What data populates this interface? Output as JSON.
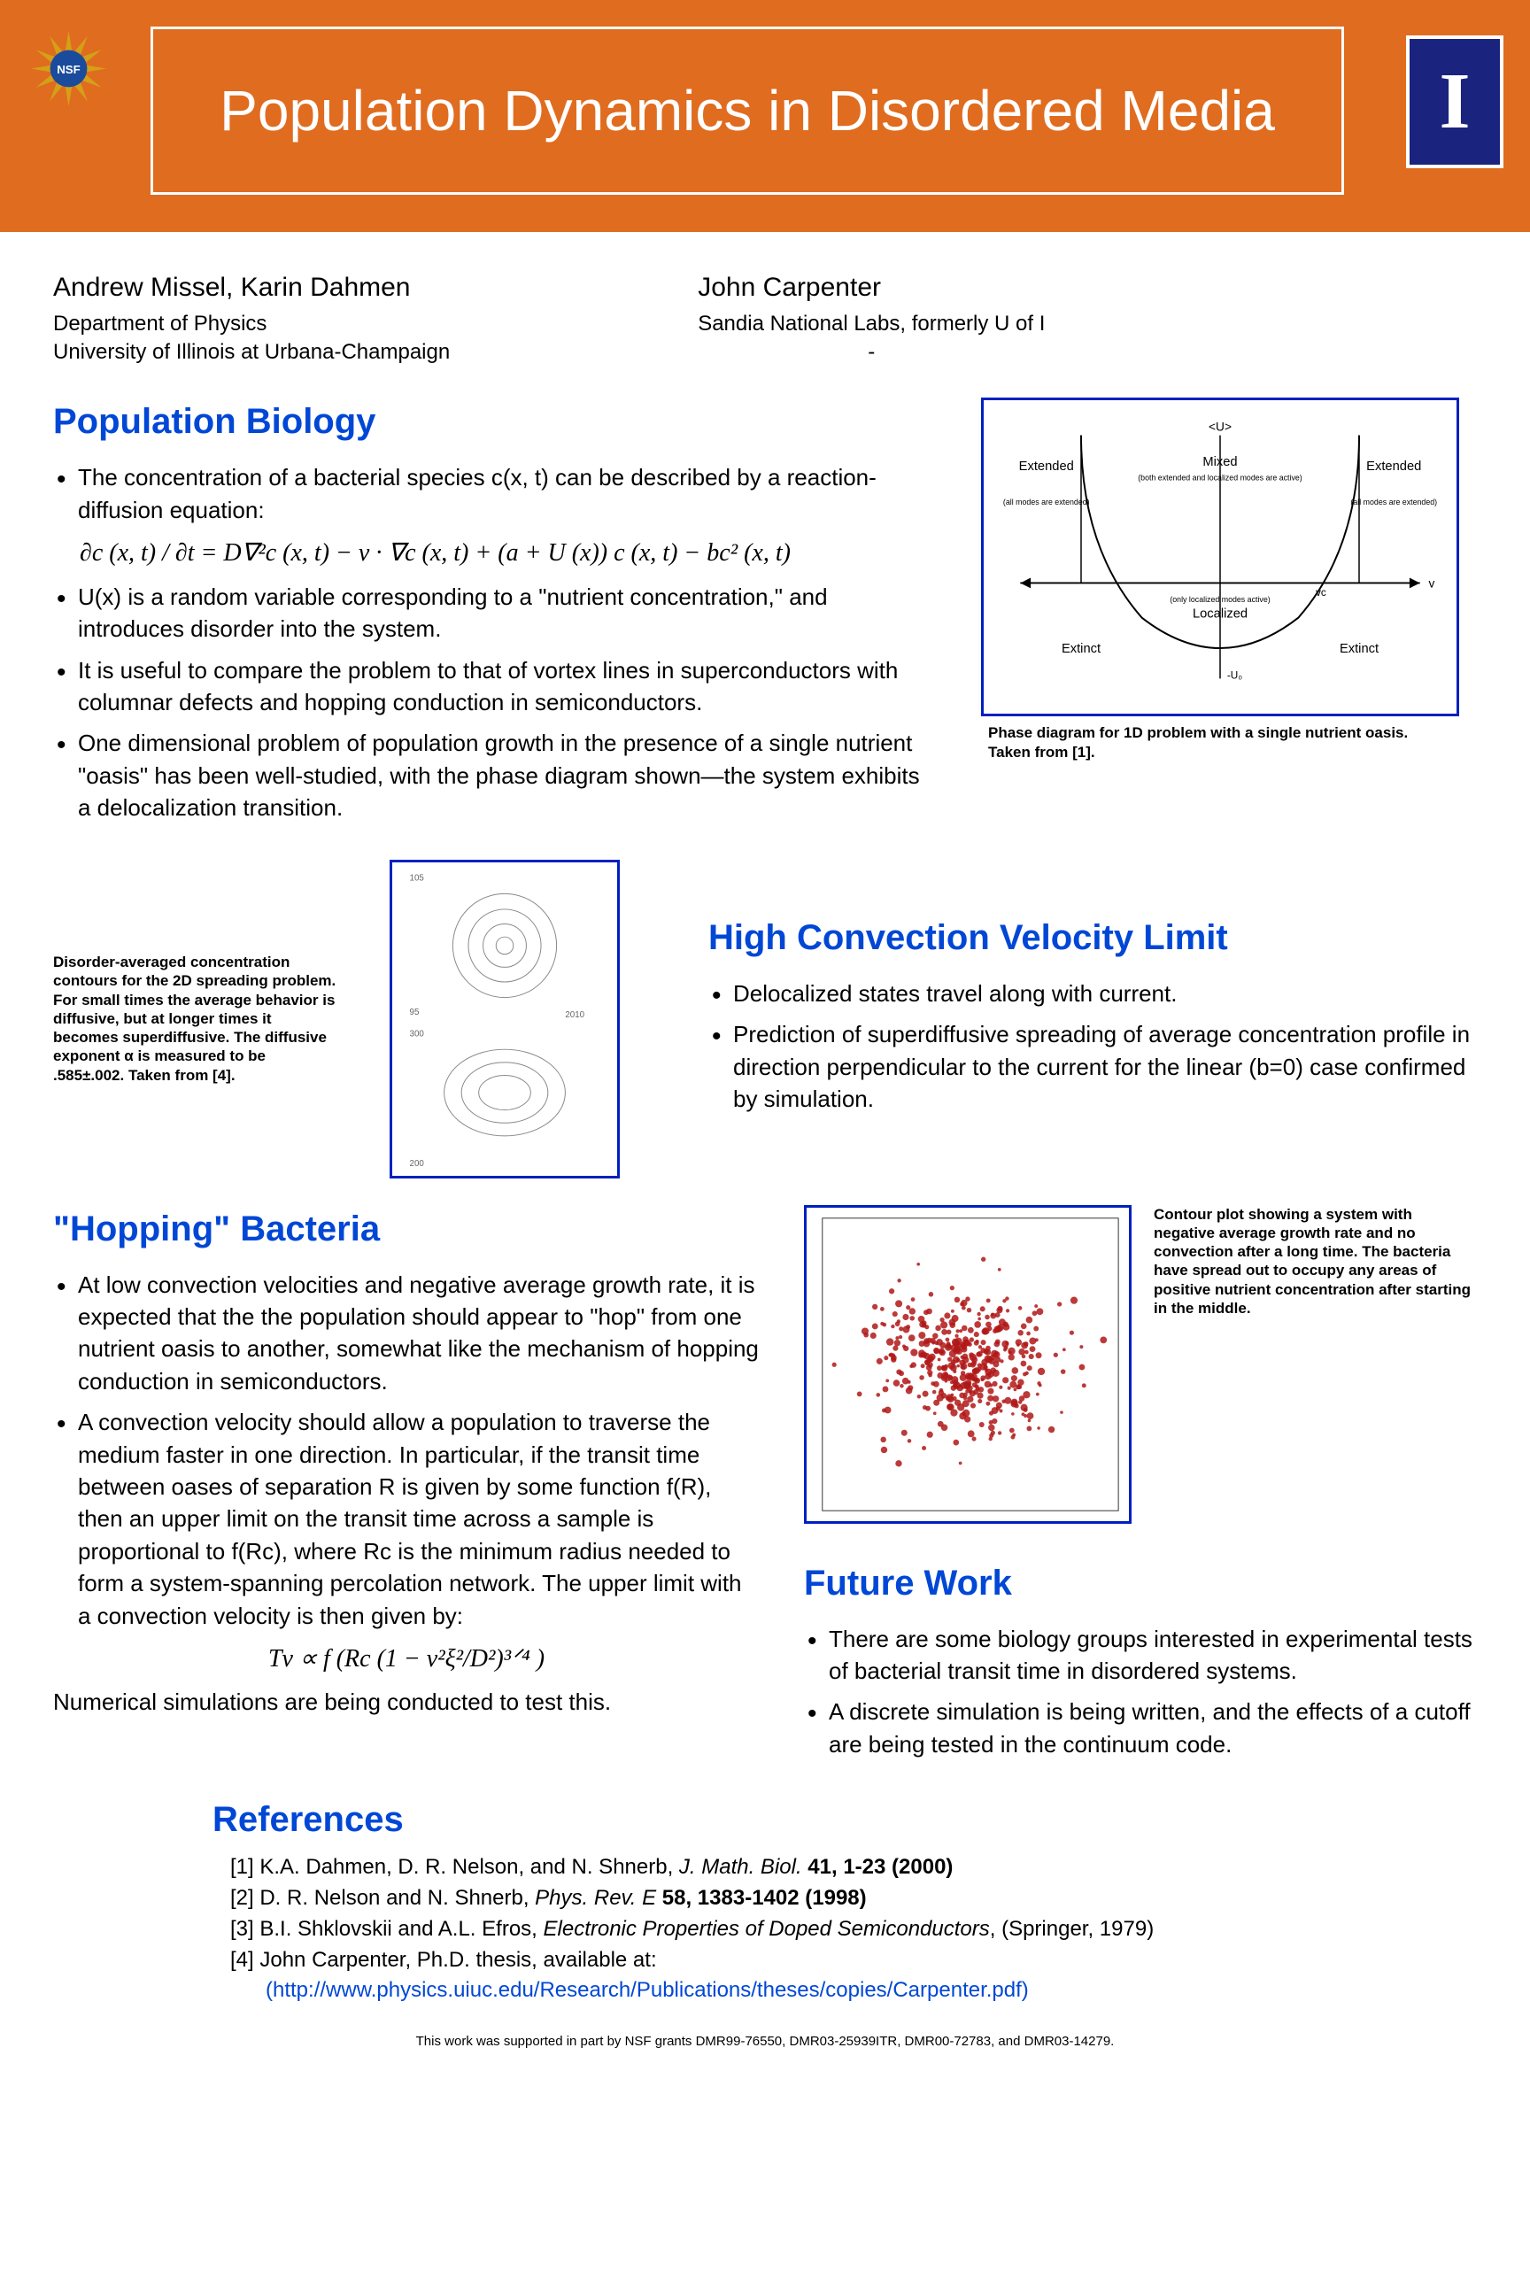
{
  "header": {
    "title": "Population Dynamics in Disordered Media",
    "nsf_colors": {
      "outer": "#1a4b9c",
      "star": "#d4a017"
    },
    "ui_letter": "I"
  },
  "authors": {
    "left": {
      "names": "Andrew Missel, Karin Dahmen",
      "dept": "Department of Physics",
      "uni": "University of Illinois at Urbana-Champaign"
    },
    "right": {
      "names": "John Carpenter",
      "aff": "Sandia National Labs, formerly  U of I",
      "sub": "-"
    }
  },
  "pop_bio": {
    "heading": "Population Biology",
    "b1": "The concentration of a bacterial species c(x, t) can be described by a reaction-diffusion equation:",
    "eq": "∂c (x, t) / ∂t  =  D∇²c (x, t) − v · ∇c (x, t) + (a + U (x)) c (x, t) − bc² (x, t)",
    "b2": "U(x) is a random variable corresponding to a \"nutrient concentration,\" and introduces disorder into the system.",
    "b3": "It is useful to compare the problem to that of vortex lines in superconductors with columnar defects and hopping conduction in semiconductors.",
    "b4": "One dimensional problem of population growth in the presence of a single nutrient \"oasis\" has been well-studied, with the phase diagram shown—the system exhibits a delocalization transition.",
    "phase_caption": "Phase diagram for 1D problem with a single nutrient oasis. Taken from [1].",
    "phase": {
      "top": "<U>",
      "extended": "Extended",
      "mixed": "Mixed",
      "mixed_sub": "(both extended and localized modes are active)",
      "all_ext": "(all modes are extended)",
      "localized": "Localized",
      "only_loc": "(only localized modes active)",
      "extinct": "Extinct",
      "v": "v",
      "vc": "vc",
      "u0": "-U₀"
    }
  },
  "contours": {
    "caption": "Disorder-averaged concentration contours for the 2D spreading problem.  For small times the average behavior is diffusive, but at longer times it becomes superdiffusive. The diffusive exponent α is measured to be .585±.002. Taken from [4]."
  },
  "hcv": {
    "heading": "High Convection Velocity Limit",
    "b1": "Delocalized states travel along with current.",
    "b2": "Prediction of superdiffusive spreading of average concentration profile in direction perpendicular to the current for the linear (b=0) case confirmed by simulation."
  },
  "hopping": {
    "heading": "\"Hopping\" Bacteria",
    "b1": "At low convection velocities and negative average growth rate, it is expected that the the population should appear to \"hop\" from one nutrient oasis to another, somewhat like the mechanism of hopping conduction in semiconductors.",
    "b2": "A convection velocity should allow a population to traverse the medium faster in one direction.  In particular, if the transit time between oases of separation R is given by some function f(R), then an upper limit on the transit time across a sample is proportional to f(Rc), where Rc is the minimum radius needed to form a system-spanning percolation network.  The upper limit with a convection velocity is then given by:",
    "eq": "Tv  ∝  f (Rc (1 − v²ξ²/D²)³ᐟ⁴ )",
    "b3": "Numerical simulations are being conducted to test this."
  },
  "scatter": {
    "caption": "Contour plot showing a system with negative average growth rate and no convection after a long time. The bacteria have spread out to occupy any areas of positive nutrient concentration after starting in the middle.",
    "dot_color": "#b01818",
    "n_dots": 420
  },
  "future": {
    "heading": "Future Work",
    "b1": "There are some biology groups interested in experimental tests of bacterial transit time in disordered systems.",
    "b2": "A discrete simulation is being written, and the effects of a cutoff are being tested in the continuum code."
  },
  "refs": {
    "heading": "References",
    "r1_a": "[1] K.A. Dahmen, D. R. Nelson, and N. Shnerb, ",
    "r1_em": "J. Math. Biol.",
    "r1_b": " 41, 1-23 (2000)",
    "r2_a": "[2] D. R. Nelson and N. Shnerb, ",
    "r2_em": "Phys. Rev. E",
    "r2_b": " 58, 1383-1402 (1998)",
    "r3_a": "[3] B.I. Shklovskii and A.L. Efros, ",
    "r3_em": "Electronic Properties of Doped Semiconductors",
    "r3_b": ", (Springer, 1979)",
    "r4_a": "[4] John Carpenter, Ph.D. thesis, available at:",
    "r4_link": "(http://www.physics.uiuc.edu/Research/Publications/theses/copies/Carpenter.pdf)"
  },
  "ack": "This work was supported in part by NSF grants DMR99-76550, DMR03-25939ITR, DMR00-72783, and DMR03-14279."
}
